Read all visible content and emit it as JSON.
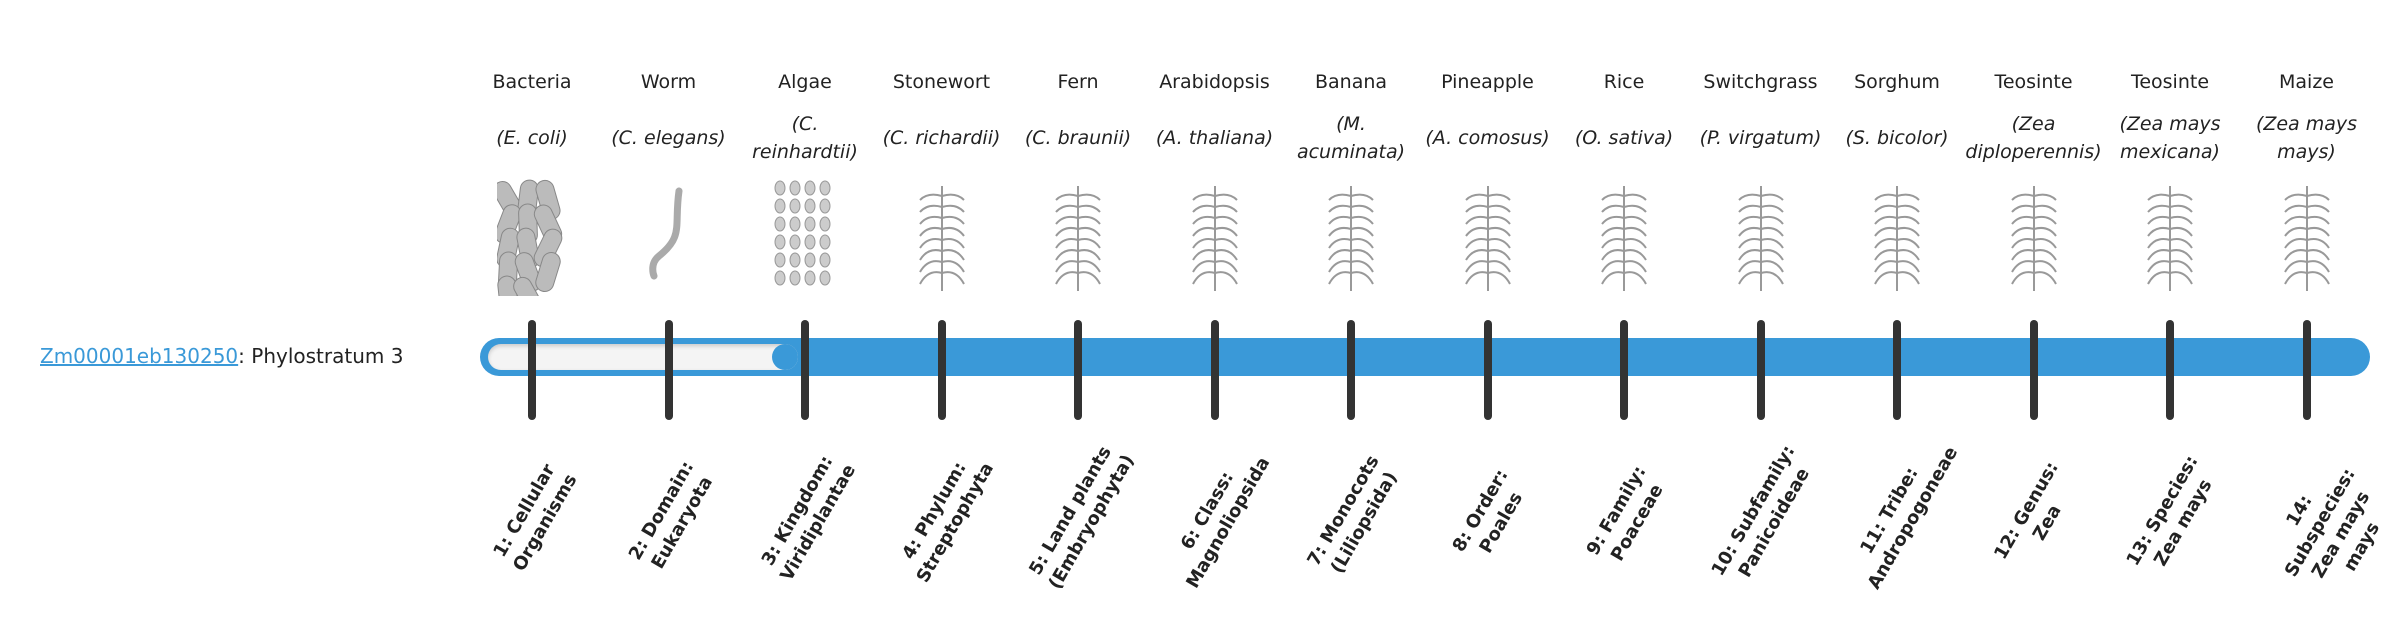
{
  "gene": {
    "id": "Zm00001eb130250",
    "separator": ":",
    "stratum_text": " Phylostratum 3"
  },
  "progress": {
    "current_stratum": 3,
    "total_strata": 14,
    "accent": "#3a99d8"
  },
  "organisms": [
    {
      "common": "Bacteria",
      "scientific": "(E. coli)",
      "icon": "bacteria-icon"
    },
    {
      "common": "Worm",
      "scientific": "(C. elegans)",
      "icon": "worm-icon"
    },
    {
      "common": "Algae",
      "scientific": "(C. reinhardtii)",
      "icon": "algae-icon"
    },
    {
      "common": "Stonewort",
      "scientific": "(C. richardii)",
      "icon": "stonewort-icon"
    },
    {
      "common": "Fern",
      "scientific": "(C. braunii)",
      "icon": "fern-icon"
    },
    {
      "common": "Arabidopsis",
      "scientific": "(A. thaliana)",
      "icon": "arabidopsis-icon"
    },
    {
      "common": "Banana",
      "scientific": "(M. acuminata)",
      "icon": "banana-icon"
    },
    {
      "common": "Pineapple",
      "scientific": "(A. comosus)",
      "icon": "pineapple-icon"
    },
    {
      "common": "Rice",
      "scientific": "(O. sativa)",
      "icon": "rice-icon"
    },
    {
      "common": "Switchgrass",
      "scientific": "(P. virgatum)",
      "icon": "switchgrass-icon"
    },
    {
      "common": "Sorghum",
      "scientific": "(S. bicolor)",
      "icon": "sorghum-icon"
    },
    {
      "common": "Teosinte",
      "scientific": "(Zea diploperennis)",
      "icon": "teosinte-icon"
    },
    {
      "common": "Teosinte",
      "scientific": "(Zea mays mexicana)",
      "icon": "teosinte-icon"
    },
    {
      "common": "Maize",
      "scientific": "(Zea mays mays)",
      "icon": "maize-icon"
    }
  ],
  "strata": [
    "1: Cellular Organisms",
    "2: Domain: Eukaryota",
    "3: Kingdom: Viridiplantae",
    "4: Phylum: Streptophyta",
    "5: Land plants (Embryophyta)",
    "6: Class: Magnoliopsida",
    "7: Monocots (Liliopsida)",
    "8: Order: Poales",
    "9: Family: Poaceae",
    "10: Subfamily: Panicoideae",
    "11: Tribe: Andropogoneae",
    "12: Genus: Zea",
    "13: Species: Zea mays",
    "14: Subspecies: Zea mays mays"
  ]
}
